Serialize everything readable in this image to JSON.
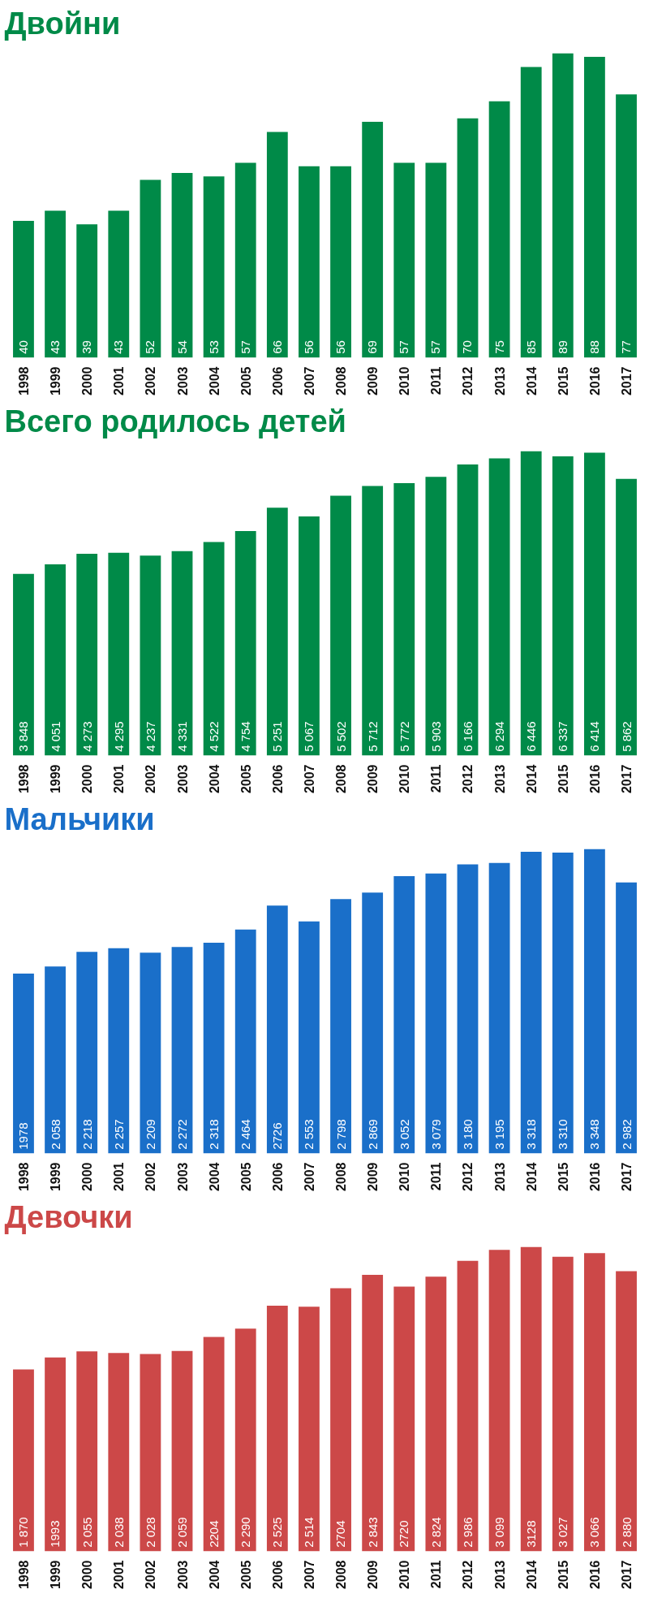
{
  "chart_data": [
    {
      "type": "bar",
      "title": "Двойни",
      "categories": [
        "1998",
        "1999",
        "2000",
        "2001",
        "2002",
        "2003",
        "2004",
        "2005",
        "2006",
        "2007",
        "2008",
        "2009",
        "2010",
        "2011",
        "2012",
        "2013",
        "2014",
        "2015",
        "2016",
        "2017"
      ],
      "tick_labels": "x",
      "series": [
        {
          "color": "#008a48",
          "values": [
            40,
            43,
            39,
            43,
            52,
            54,
            53,
            57,
            66,
            56,
            56,
            69,
            57,
            57,
            70,
            75,
            85,
            89,
            88,
            77
          ]
        }
      ],
      "data_labels": true
    },
    {
      "type": "bar",
      "title": "Всего родилось детей",
      "categories": [
        "1998",
        "1999",
        "2000",
        "2001",
        "2002",
        "2003",
        "2004",
        "2005",
        "2006",
        "2007",
        "2008",
        "2009",
        "2010",
        "2011",
        "2012",
        "2013",
        "2014",
        "2015",
        "2016",
        "2017"
      ],
      "tick_labels": "x",
      "series": [
        {
          "color": "#008a48",
          "values": [
            3848,
            4051,
            4273,
            4295,
            4237,
            4331,
            4522,
            4754,
            5251,
            5067,
            5502,
            5712,
            5772,
            5903,
            6166,
            6294,
            6446,
            6337,
            6414,
            5862
          ],
          "value_labels": [
            "3 848",
            "4 051",
            "4 273",
            "4 295",
            "4 237",
            "4 331",
            "4 522",
            "4 754",
            "5 251",
            "5 067",
            "5 502",
            "5 712",
            "5 772",
            "5 903",
            "6 166",
            "6 294",
            "6 446",
            "6 337",
            "6 414",
            "5 862"
          ]
        }
      ]
    },
    {
      "type": "bar",
      "title": "Мальчики",
      "categories": [
        "1998",
        "1999",
        "2000",
        "2001",
        "2002",
        "2003",
        "2004",
        "2005",
        "2006",
        "2007",
        "2008",
        "2009",
        "2010",
        "2011",
        "2012",
        "2013",
        "2014",
        "2015",
        "2016",
        "2017"
      ],
      "tick_labels": "x",
      "series": [
        {
          "color": "#1a6fc9",
          "values": [
            1978,
            2058,
            2218,
            2257,
            2209,
            2272,
            2318,
            2464,
            2726,
            2553,
            2798,
            2869,
            3052,
            3079,
            3180,
            3195,
            3318,
            3310,
            3348,
            2982
          ],
          "value_labels": [
            "1978",
            "2 058",
            "2 218",
            "2 257",
            "2 209",
            "2 272",
            "2 318",
            "2 464",
            "2726",
            "2 553",
            "2 798",
            "2 869",
            "3 052",
            "3 079",
            "3 180",
            "3 195",
            "3 318",
            "3 310",
            "3 348",
            "2 982"
          ]
        }
      ]
    },
    {
      "type": "bar",
      "title": "Девочки",
      "categories": [
        "1998",
        "1999",
        "2000",
        "2001",
        "2002",
        "2003",
        "2004",
        "2005",
        "2006",
        "2007",
        "2008",
        "2009",
        "2010",
        "2011",
        "2012",
        "2013",
        "2014",
        "2015",
        "2016",
        "2017"
      ],
      "tick_labels": "x",
      "series": [
        {
          "color": "#cc4848",
          "values": [
            1870,
            1993,
            2055,
            2038,
            2028,
            2059,
            2204,
            2290,
            2525,
            2514,
            2704,
            2843,
            2720,
            2824,
            2986,
            3099,
            3128,
            3027,
            3066,
            2880
          ],
          "value_labels": [
            "1 870",
            "1993",
            "2 055",
            "2 038",
            "2 028",
            "2 059",
            "2204",
            "2 290",
            "2 525",
            "2 514",
            "2704",
            "2 843",
            "2720",
            "2 824",
            "2 986",
            "3 099",
            "3128",
            "3 027",
            "3 066",
            "2 880"
          ]
        }
      ]
    }
  ]
}
